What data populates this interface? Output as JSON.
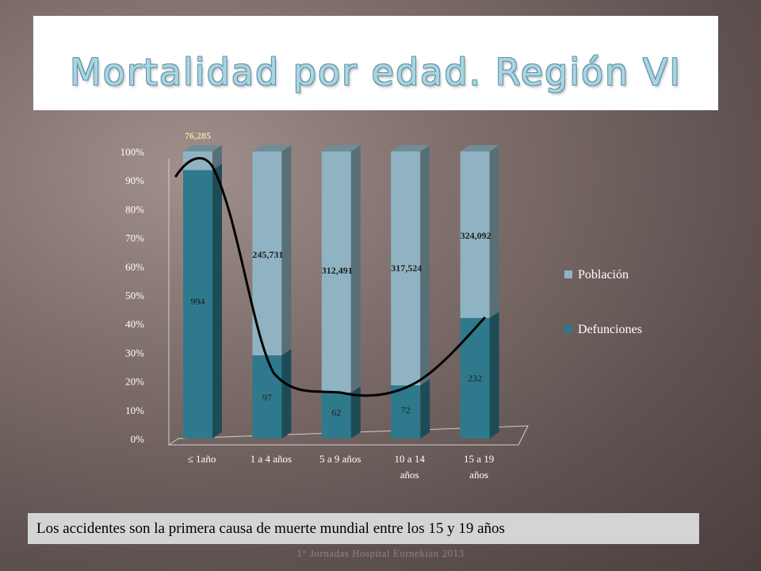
{
  "title": "Mortalidad por edad. Región VI",
  "caption": "Los accidentes son la primera causa de muerte mundial entre los 15 y 19 años",
  "footer": "1° Jornadas Hospital Eurnekian 2013",
  "colors": {
    "poblacion": "#8fb3c2",
    "defunciones": "#2e7a8c",
    "highlight_label": "#f3d9a8",
    "trend_line": "#000000"
  },
  "chart_data": {
    "type": "bar",
    "stacked": "percent",
    "categories": [
      [
        "≤ 1año"
      ],
      [
        "1 a 4 años"
      ],
      [
        "5 a 9 años"
      ],
      [
        "10 a 14",
        "años"
      ],
      [
        "15 a 19",
        "años"
      ]
    ],
    "series": [
      {
        "name": "Defunciones",
        "percent": [
          93.5,
          29,
          16,
          18.5,
          42
        ],
        "labels": [
          "994",
          "97",
          "62",
          "72",
          "232"
        ]
      },
      {
        "name": "Población",
        "percent": [
          6.5,
          71,
          84,
          81.5,
          58
        ],
        "labels": [
          "76,285",
          "245,731",
          "312,491",
          "317,524",
          "324,092"
        ]
      }
    ],
    "yticks": [
      "0%",
      "10%",
      "20%",
      "30%",
      "40%",
      "50%",
      "60%",
      "70%",
      "80%",
      "90%",
      "100%"
    ],
    "ylim": [
      0,
      100
    ],
    "legend": [
      "Población",
      "Defunciones"
    ],
    "legend_position": "right",
    "trend_line": true
  }
}
